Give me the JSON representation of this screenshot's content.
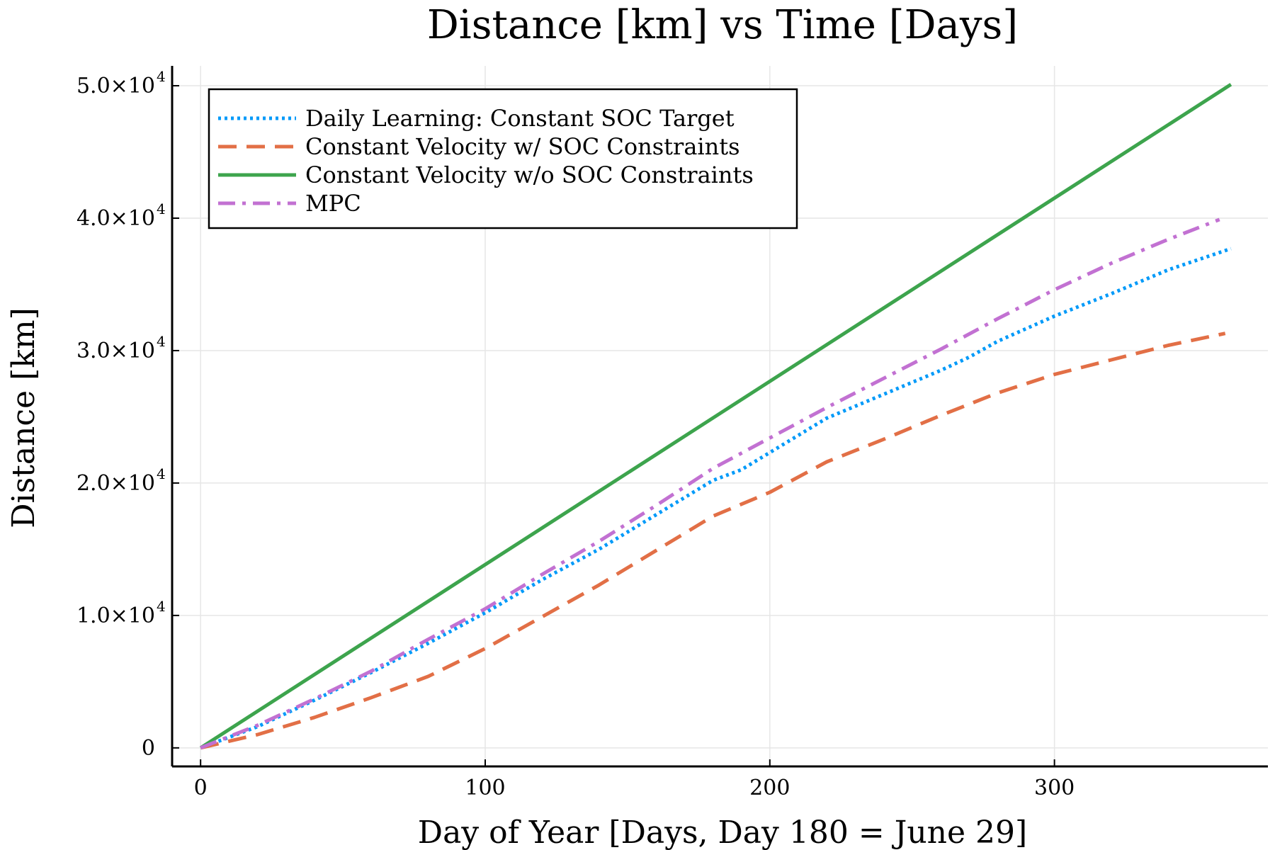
{
  "chart_data": {
    "type": "line",
    "title": "Distance [km] vs Time [Days]",
    "xlabel": "Day of Year [Days, Day 180 = June 29]",
    "ylabel": "Distance [km]",
    "xlim": [
      -10,
      375
    ],
    "ylim": [
      -1400,
      51500
    ],
    "grid": true,
    "legend_position": "top-left",
    "x_ticks": [
      {
        "value": 0,
        "label": "0"
      },
      {
        "value": 100,
        "label": "100"
      },
      {
        "value": 200,
        "label": "200"
      },
      {
        "value": 300,
        "label": "300"
      }
    ],
    "y_ticks": [
      {
        "value": 0,
        "label": "0",
        "exp": ""
      },
      {
        "value": 10000,
        "label": "1.0×10",
        "exp": "4"
      },
      {
        "value": 20000,
        "label": "2.0×10",
        "exp": "4"
      },
      {
        "value": 30000,
        "label": "3.0×10",
        "exp": "4"
      },
      {
        "value": 40000,
        "label": "4.0×10",
        "exp": "4"
      },
      {
        "value": 50000,
        "label": "5.0×10",
        "exp": "4"
      }
    ],
    "series": [
      {
        "name": "Daily Learning: Constant SOC Target",
        "color": "#009af9",
        "style": "dotted",
        "x": [
          0,
          20,
          40,
          60,
          80,
          100,
          120,
          140,
          160,
          180,
          190,
          200,
          220,
          240,
          260,
          270,
          280,
          300,
          320,
          340,
          362
        ],
        "y": [
          0,
          1600,
          3600,
          5700,
          7900,
          10200,
          12700,
          15000,
          17600,
          20200,
          21000,
          22300,
          24900,
          26700,
          28500,
          29500,
          30700,
          32600,
          34300,
          36100,
          37700
        ]
      },
      {
        "name": "Constant Velocity w/ SOC Constraints",
        "color": "#e26f46",
        "style": "dashed",
        "x": [
          0,
          20,
          40,
          60,
          80,
          100,
          120,
          140,
          160,
          180,
          200,
          220,
          240,
          260,
          280,
          300,
          320,
          340,
          360
        ],
        "y": [
          0,
          1000,
          2300,
          3800,
          5400,
          7500,
          9900,
          12300,
          14900,
          17500,
          19300,
          21600,
          23300,
          25100,
          26800,
          28200,
          29300,
          30400,
          31300
        ]
      },
      {
        "name": "Constant Velocity w/o SOC Constraints",
        "color": "#3da44d",
        "style": "solid",
        "x": [
          0,
          362
        ],
        "y": [
          0,
          50100
        ]
      },
      {
        "name": "MPC",
        "color": "#c271d2",
        "style": "dashdot",
        "x": [
          0,
          20,
          40,
          60,
          80,
          100,
          120,
          140,
          160,
          180,
          200,
          220,
          240,
          260,
          280,
          300,
          320,
          340,
          358
        ],
        "y": [
          0,
          1700,
          3700,
          5800,
          8200,
          10500,
          13100,
          15600,
          18300,
          21100,
          23400,
          25700,
          27900,
          30100,
          32400,
          34600,
          36600,
          38400,
          39900
        ]
      }
    ]
  }
}
